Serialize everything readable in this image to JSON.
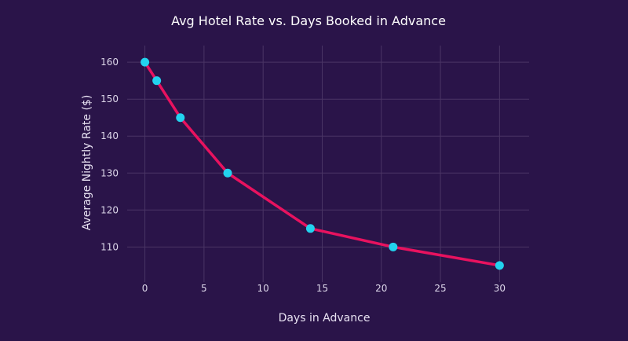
{
  "chart_data": {
    "type": "line",
    "title": "Avg Hotel Rate vs. Days Booked in Advance",
    "xlabel": "Days in Advance",
    "ylabel": "Average Nightly Rate ($)",
    "x": [
      0,
      1,
      3,
      7,
      14,
      21,
      30
    ],
    "series": [
      {
        "values": [
          160,
          155,
          145,
          130,
          115,
          110,
          105
        ]
      }
    ],
    "xlim": [
      -1.5,
      32.5
    ],
    "ylim": [
      100.5,
      164.5
    ],
    "xticks": [
      0,
      5,
      10,
      15,
      20,
      25,
      30
    ],
    "yticks": [
      110,
      120,
      130,
      140,
      150,
      160
    ],
    "grid": true,
    "colors": {
      "background": "#2a1449",
      "grid": "#4a3565",
      "line": "#e8125f",
      "marker": "#22d3ee"
    }
  }
}
